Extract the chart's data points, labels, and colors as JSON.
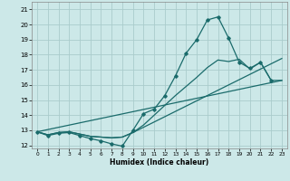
{
  "xlabel": "Humidex (Indice chaleur)",
  "xlim": [
    -0.5,
    23.5
  ],
  "ylim": [
    11.8,
    21.5
  ],
  "yticks": [
    12,
    13,
    14,
    15,
    16,
    17,
    18,
    19,
    20,
    21
  ],
  "xticks": [
    0,
    1,
    2,
    3,
    4,
    5,
    6,
    7,
    8,
    9,
    10,
    11,
    12,
    13,
    14,
    15,
    16,
    17,
    18,
    19,
    20,
    21,
    22,
    23
  ],
  "background_color": "#cce8e8",
  "grid_color": "#aacccc",
  "line_color": "#1a6b6b",
  "line1_x": [
    0,
    1,
    2,
    3,
    4,
    5,
    6,
    7,
    8,
    9,
    10,
    11,
    12,
    13,
    14,
    15,
    16,
    17,
    18,
    19,
    20,
    21,
    22
  ],
  "line1_y": [
    12.9,
    12.65,
    12.8,
    12.85,
    12.65,
    12.45,
    12.3,
    12.1,
    11.95,
    13.0,
    14.1,
    14.4,
    15.3,
    16.6,
    18.1,
    19.0,
    20.3,
    20.5,
    19.1,
    17.5,
    17.1,
    17.5,
    16.3
  ],
  "line2_x": [
    0,
    1,
    2,
    3,
    4,
    5,
    6,
    7,
    8,
    9,
    10,
    11,
    12,
    13,
    14,
    15,
    16,
    17,
    18,
    19,
    20,
    21,
    22,
    23
  ],
  "line2_y": [
    12.9,
    12.7,
    12.85,
    12.9,
    12.75,
    12.6,
    12.55,
    12.5,
    12.55,
    12.85,
    13.35,
    14.0,
    14.65,
    15.3,
    15.9,
    16.5,
    17.15,
    17.65,
    17.55,
    17.7,
    17.05,
    17.5,
    16.3,
    16.3
  ],
  "line3_x": [
    0,
    1,
    2,
    3,
    4,
    5,
    6,
    7,
    8,
    9,
    10,
    11,
    12,
    13,
    14,
    15,
    16,
    17,
    18,
    19,
    20,
    21,
    22,
    23
  ],
  "line3_y": [
    12.9,
    12.7,
    12.85,
    12.9,
    12.75,
    12.6,
    12.55,
    12.5,
    12.55,
    12.85,
    13.2,
    13.55,
    13.9,
    14.25,
    14.6,
    14.95,
    15.3,
    15.65,
    16.0,
    16.35,
    16.7,
    17.05,
    17.4,
    17.75
  ],
  "line4_x": [
    0,
    23
  ],
  "line4_y": [
    12.9,
    16.3
  ]
}
